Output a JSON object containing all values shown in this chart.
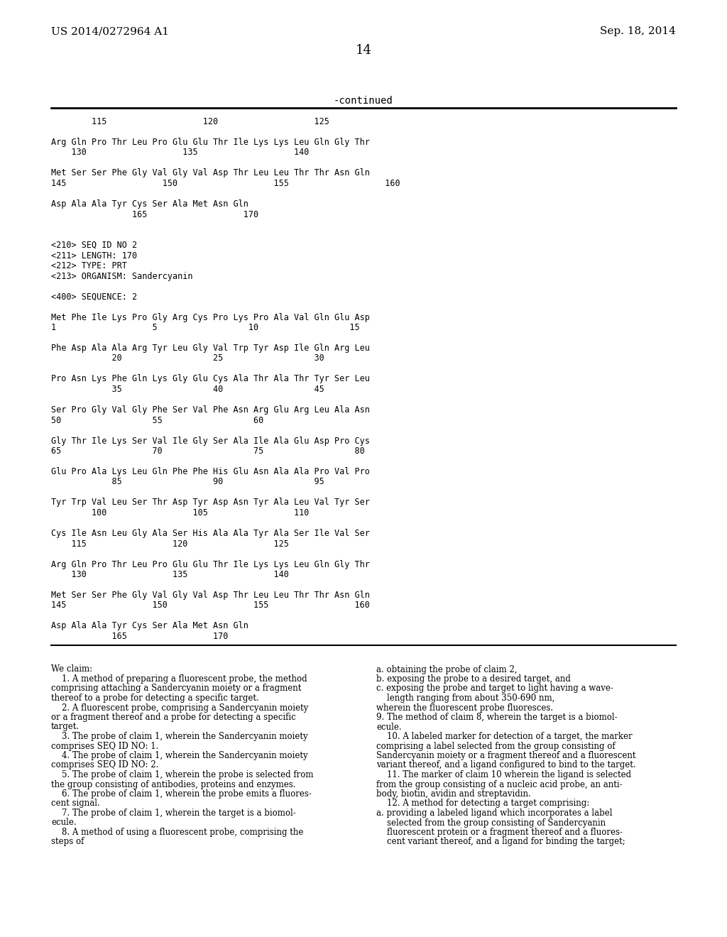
{
  "bg_color": "#ffffff",
  "header_left": "US 2014/0272964 A1",
  "header_right": "Sep. 18, 2014",
  "page_number": "14",
  "continued_label": "-continued",
  "sequence_table": [
    "        115                   120                   125",
    "",
    "Arg Gln Pro Thr Leu Pro Glu Glu Thr Ile Lys Lys Leu Gln Gly Thr",
    "    130                   135                   140",
    "",
    "Met Ser Ser Phe Gly Val Gly Val Asp Thr Leu Leu Thr Thr Asn Gln",
    "145                   150                   155                   160",
    "",
    "Asp Ala Ala Tyr Cys Ser Ala Met Asn Gln",
    "                165                   170",
    "",
    "",
    "<210> SEQ ID NO 2",
    "<211> LENGTH: 170",
    "<212> TYPE: PRT",
    "<213> ORGANISM: Sandercyanin",
    "",
    "<400> SEQUENCE: 2",
    "",
    "Met Phe Ile Lys Pro Gly Arg Cys Pro Lys Pro Ala Val Gln Glu Asp",
    "1                   5                  10                  15",
    "",
    "Phe Asp Ala Ala Arg Tyr Leu Gly Val Trp Tyr Asp Ile Gln Arg Leu",
    "            20                  25                  30",
    "",
    "Pro Asn Lys Phe Gln Lys Gly Glu Cys Ala Thr Ala Thr Tyr Ser Leu",
    "            35                  40                  45",
    "",
    "Ser Pro Gly Val Gly Phe Ser Val Phe Asn Arg Glu Arg Leu Ala Asn",
    "50                  55                  60",
    "",
    "Gly Thr Ile Lys Ser Val Ile Gly Ser Ala Ile Ala Glu Asp Pro Cys",
    "65                  70                  75                  80",
    "",
    "Glu Pro Ala Lys Leu Gln Phe Phe His Glu Asn Ala Ala Pro Val Pro",
    "            85                  90                  95",
    "",
    "Tyr Trp Val Leu Ser Thr Asp Tyr Asp Asn Tyr Ala Leu Val Tyr Ser",
    "        100                 105                 110",
    "",
    "Cys Ile Asn Leu Gly Ala Ser His Ala Ala Tyr Ala Ser Ile Val Ser",
    "    115                 120                 125",
    "",
    "Arg Gln Pro Thr Leu Pro Glu Glu Thr Ile Lys Lys Leu Gln Gly Thr",
    "    130                 135                 140",
    "",
    "Met Ser Ser Phe Gly Val Gly Val Asp Thr Leu Leu Thr Thr Asn Gln",
    "145                 150                 155                 160",
    "",
    "Asp Ala Ala Tyr Cys Ser Ala Met Asn Gln",
    "            165                 170"
  ],
  "claims_left": [
    "We claim:",
    "    1. A method of preparing a fluorescent probe, the method",
    "comprising attaching a Sandercyanin moiety or a fragment",
    "thereof to a probe for detecting a specific target.",
    "    2. A fluorescent probe, comprising a Sandercyanin moiety",
    "or a fragment thereof and a probe for detecting a specific",
    "target.",
    "    3. The probe of claim 1, wherein the Sandercyanin moiety",
    "comprises SEQ ID NO: 1.",
    "    4. The probe of claim 1, wherein the Sandercyanin moiety",
    "comprises SEQ ID NO: 2.",
    "    5. The probe of claim 1, wherein the probe is selected from",
    "the group consisting of antibodies, proteins and enzymes.",
    "    6. The probe of claim 1, wherein the probe emits a fluores-",
    "cent signal.",
    "    7. The probe of claim 1, wherein the target is a biomol-",
    "ecule.",
    "    8. A method of using a fluorescent probe, comprising the",
    "steps of"
  ],
  "claims_right": [
    "a. obtaining the probe of claim 2,",
    "b. exposing the probe to a desired target, and",
    "c. exposing the probe and target to light having a wave-",
    "    length ranging from about 350-690 nm,",
    "wherein the fluorescent probe fluoresces.",
    "9. The method of claim 8, wherein the target is a biomol-",
    "ecule.",
    "    10. A labeled marker for detection of a target, the marker",
    "comprising a label selected from the group consisting of",
    "Sandercyanin moiety or a fragment thereof and a fluorescent",
    "variant thereof, and a ligand configured to bind to the target.",
    "    11. The marker of claim 10 wherein the ligand is selected",
    "from the group consisting of a nucleic acid probe, an anti-",
    "body, biotin, avidin and streptavidin.",
    "    12. A method for detecting a target comprising:",
    "a. providing a labeled ligand which incorporates a label",
    "    selected from the group consisting of Sandercyanin",
    "    fluorescent protein or a fragment thereof and a fluores-",
    "    cent variant thereof, and a ligand for binding the target;"
  ]
}
